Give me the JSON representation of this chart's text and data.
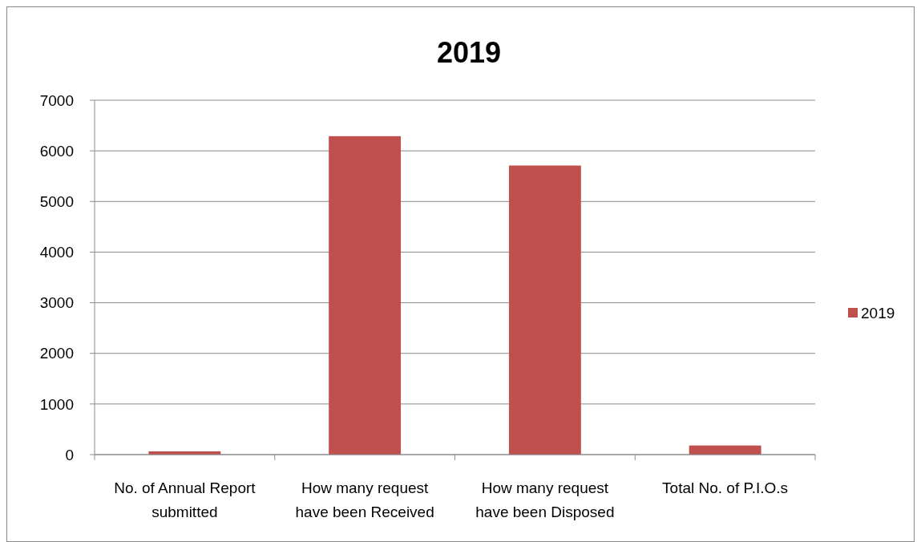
{
  "chart_data": {
    "type": "bar",
    "title": "2019",
    "categories": [
      "No. of Annual Report submitted",
      "How many request have been Received",
      "How many request have been Disposed",
      "Total No. of P.I.O.s"
    ],
    "series": [
      {
        "name": "2019",
        "color": "#c0504d",
        "values": [
          65,
          6290,
          5710,
          180
        ]
      }
    ],
    "ylim": [
      0,
      7000
    ],
    "yticks": [
      0,
      1000,
      2000,
      3000,
      4000,
      5000,
      6000,
      7000
    ],
    "grid": "y",
    "legend": "right"
  }
}
